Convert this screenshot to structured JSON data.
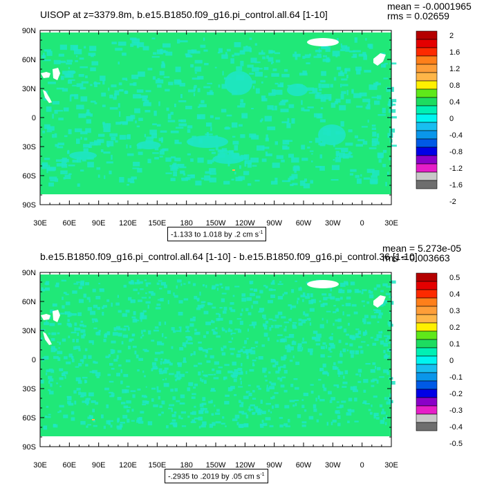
{
  "panels": [
    {
      "title": "UISOP at z=3379.8m, b.e15.B1850.f09_g16.pi_control.all.64 [1-10]",
      "mean": "mean = -0.0001965",
      "rms": "rms = 0.02659",
      "range_text": "-1.133 to 1.018 by .2 cm s",
      "range_unit_exp": "-1",
      "lat_labels": [
        "90N",
        "60N",
        "30N",
        "0",
        "30S",
        "60S",
        "90S"
      ],
      "lon_labels": [
        "30E",
        "60E",
        "90E",
        "120E",
        "150E",
        "180",
        "150W",
        "120W",
        "90W",
        "60W",
        "30W",
        "0",
        "30E"
      ],
      "colorbar_labels": [
        "2",
        "1.6",
        "1.2",
        "0.8",
        "0.4",
        "0",
        "-0.4",
        "-0.8",
        "-1.2",
        "-1.6",
        "-2"
      ]
    },
    {
      "title": "b.e15.B1850.f09_g16.pi_control.all.64 [1-10] - b.e15.B1850.f09_g16.pi_control.36 [1-10]",
      "mean": "mean = 5.273e-05",
      "rms": "rms = 0.003663",
      "range_text": "-.2935 to .2019 by .05 cm s",
      "range_unit_exp": "-1",
      "lat_labels": [
        "90N",
        "60N",
        "30N",
        "0",
        "30S",
        "60S",
        "90S"
      ],
      "lon_labels": [
        "30E",
        "60E",
        "90E",
        "120E",
        "150E",
        "180",
        "150W",
        "120W",
        "90W",
        "60W",
        "30W",
        "0",
        "30E"
      ],
      "colorbar_labels": [
        "0.5",
        "0.4",
        "0.3",
        "0.2",
        "0.1",
        "0",
        "-0.1",
        "-0.2",
        "-0.3",
        "-0.4",
        "-0.5"
      ]
    }
  ],
  "colors": {
    "palette": [
      "#b40000",
      "#e40000",
      "#fd2a00",
      "#ff7f1a",
      "#ff9e38",
      "#ffb648",
      "#fff000",
      "#5fe81a",
      "#1ddc60",
      "#00f0b4",
      "#00f5f0",
      "#18bef0",
      "#0a96ea",
      "#005ae6",
      "#0000e6",
      "#8a00c8",
      "#e61ec8",
      "#c8c8c8",
      "#6e6e6e"
    ],
    "field_main": "#20e878",
    "field_light": "#1ee6c4",
    "land_mask": "#ffffff",
    "frame": "#000000"
  }
}
